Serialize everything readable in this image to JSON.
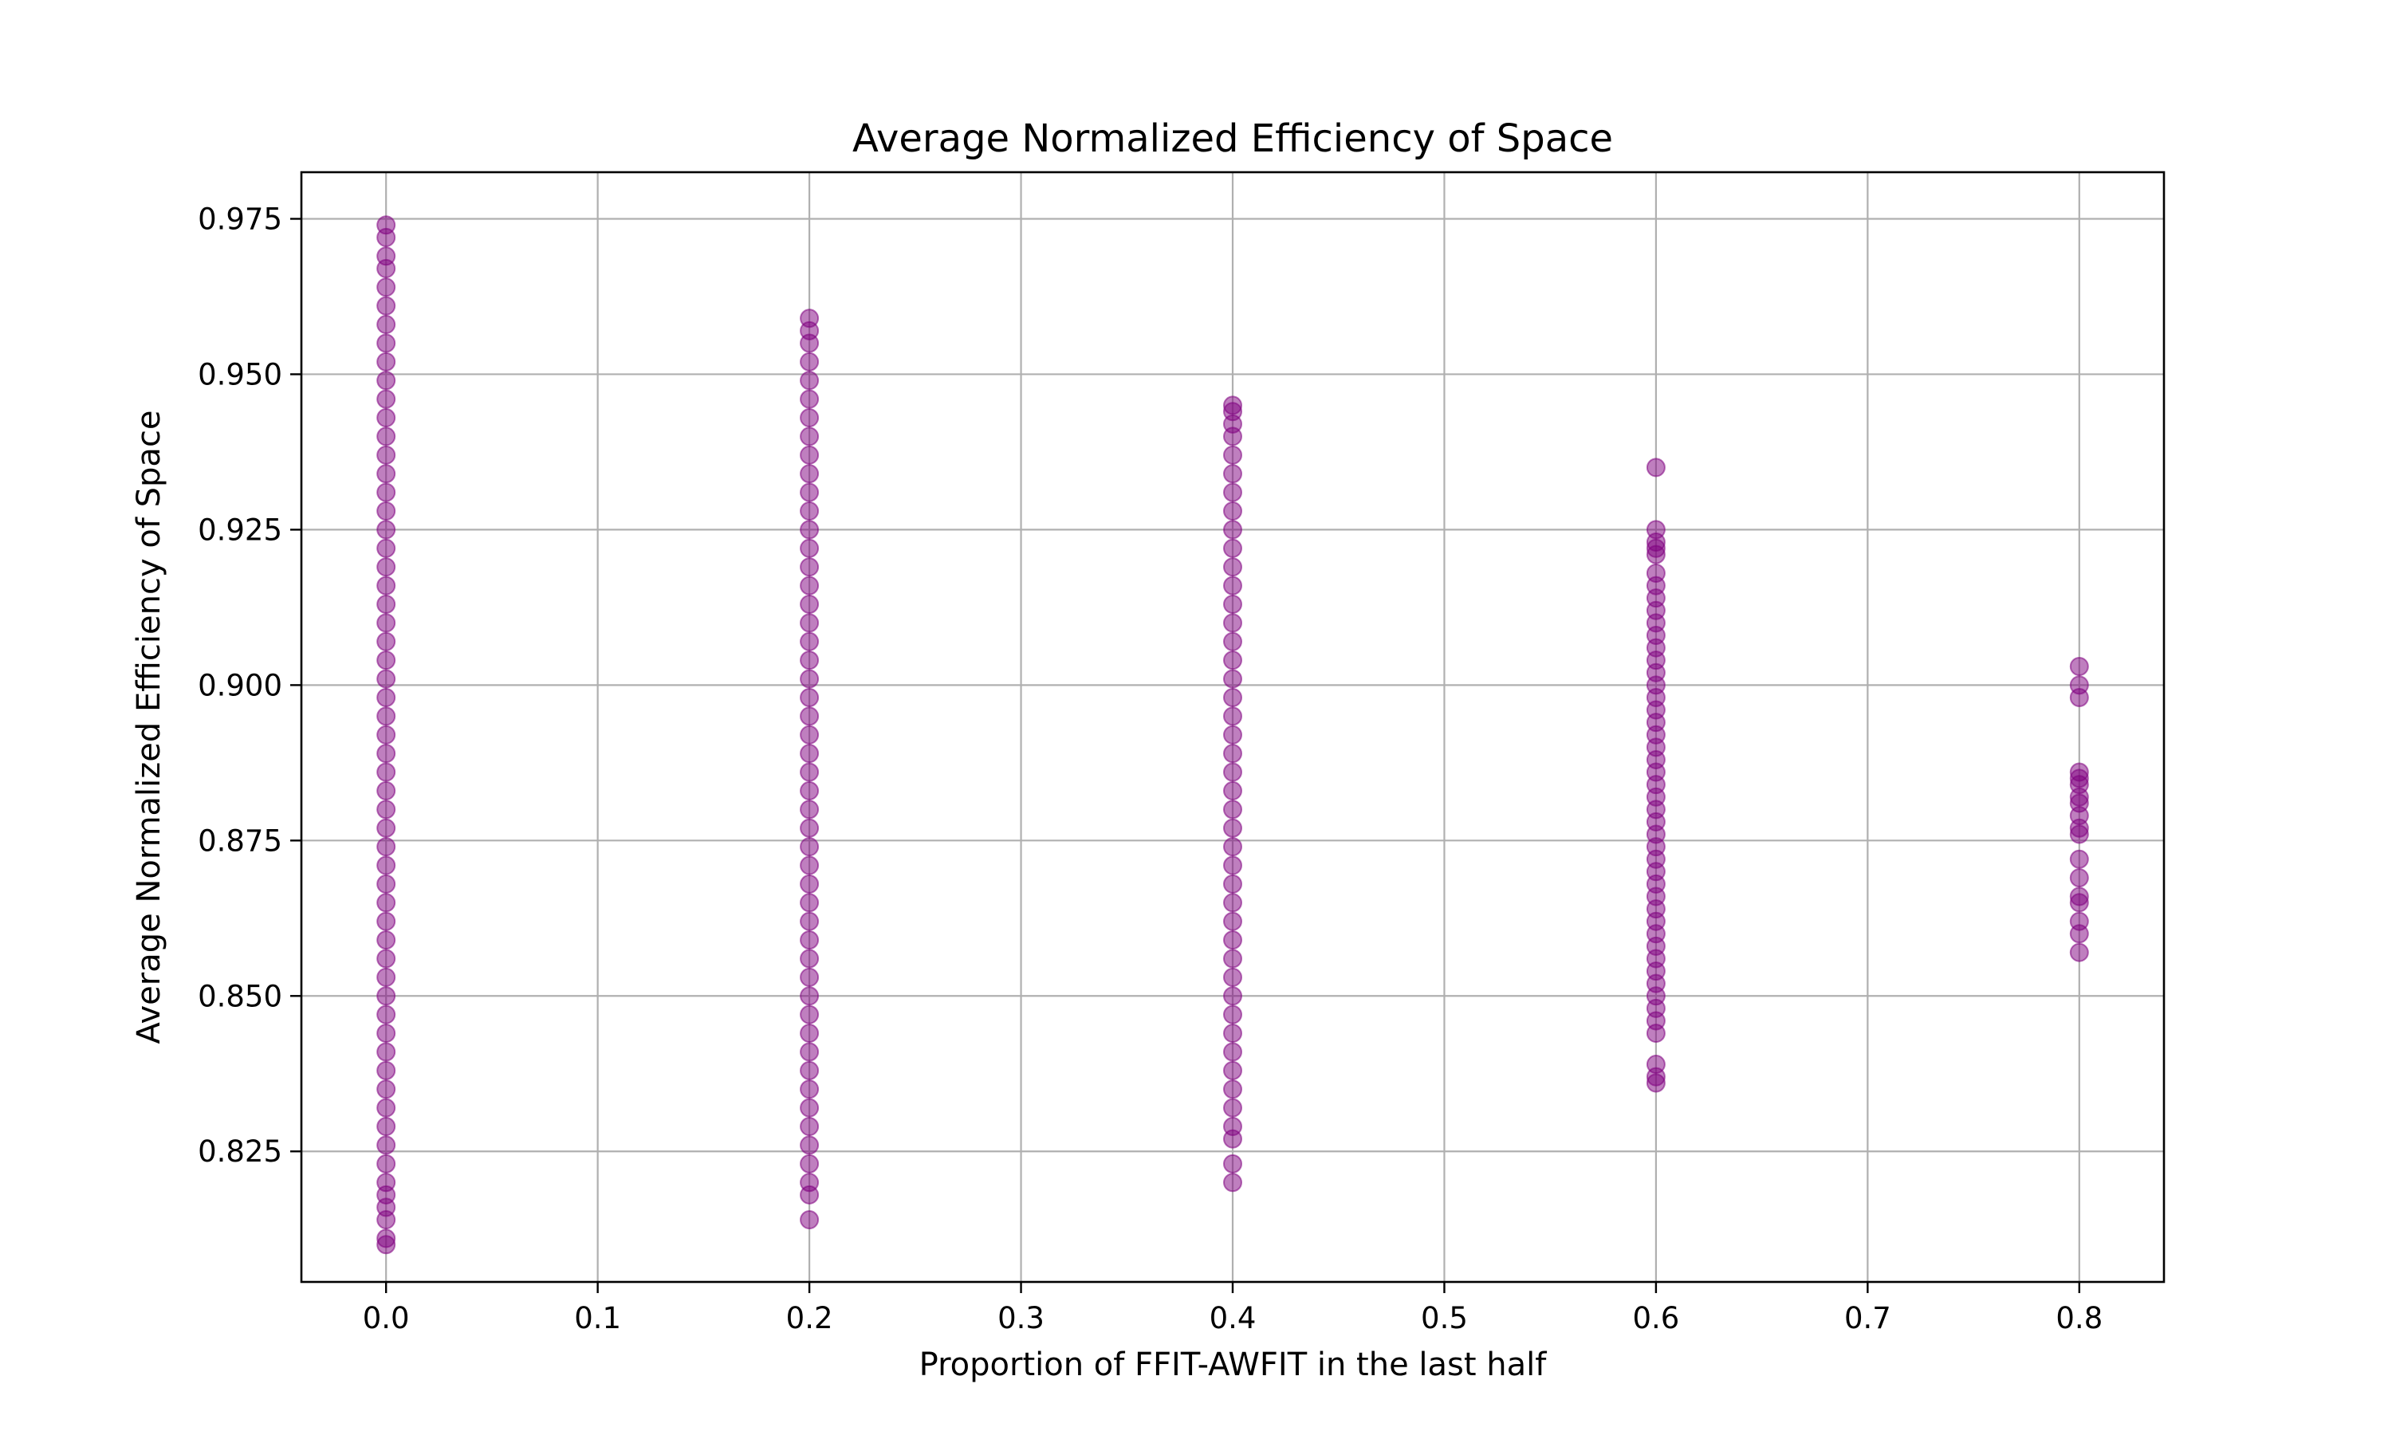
{
  "chart_data": {
    "type": "scatter",
    "title": "Average Normalized Efficiency of Space",
    "xlabel": "Proportion of FFIT-AWFIT in the last half",
    "ylabel": "Average Normalized Efficiency of Space",
    "xlim": [
      -0.04,
      0.84
    ],
    "ylim": [
      0.804,
      0.9825
    ],
    "xticks": [
      0.0,
      0.1,
      0.2,
      0.3,
      0.4,
      0.5,
      0.6,
      0.7,
      0.8
    ],
    "xtick_labels": [
      "0.0",
      "0.1",
      "0.2",
      "0.3",
      "0.4",
      "0.5",
      "0.6",
      "0.7",
      "0.8"
    ],
    "yticks": [
      0.825,
      0.85,
      0.875,
      0.9,
      0.925,
      0.95,
      0.975
    ],
    "ytick_labels": [
      "0.825",
      "0.850",
      "0.875",
      "0.900",
      "0.925",
      "0.950",
      "0.975"
    ],
    "grid": true,
    "marker_color": "#800080",
    "marker_alpha": 0.5,
    "series": [
      {
        "x": 0.0,
        "y": [
          0.81,
          0.811,
          0.814,
          0.816,
          0.818,
          0.82,
          0.823,
          0.826,
          0.829,
          0.832,
          0.835,
          0.838,
          0.841,
          0.844,
          0.847,
          0.85,
          0.853,
          0.856,
          0.859,
          0.862,
          0.865,
          0.868,
          0.871,
          0.874,
          0.877,
          0.88,
          0.883,
          0.886,
          0.889,
          0.892,
          0.895,
          0.898,
          0.901,
          0.904,
          0.907,
          0.91,
          0.913,
          0.916,
          0.919,
          0.922,
          0.925,
          0.928,
          0.931,
          0.934,
          0.937,
          0.94,
          0.943,
          0.946,
          0.949,
          0.952,
          0.955,
          0.958,
          0.961,
          0.964,
          0.967,
          0.969,
          0.972,
          0.974
        ]
      },
      {
        "x": 0.2,
        "y": [
          0.814,
          0.818,
          0.82,
          0.823,
          0.826,
          0.829,
          0.832,
          0.835,
          0.838,
          0.841,
          0.844,
          0.847,
          0.85,
          0.853,
          0.856,
          0.859,
          0.862,
          0.865,
          0.868,
          0.871,
          0.874,
          0.877,
          0.88,
          0.883,
          0.886,
          0.889,
          0.892,
          0.895,
          0.898,
          0.901,
          0.904,
          0.907,
          0.91,
          0.913,
          0.916,
          0.919,
          0.922,
          0.925,
          0.928,
          0.931,
          0.934,
          0.937,
          0.94,
          0.943,
          0.946,
          0.949,
          0.952,
          0.955,
          0.957,
          0.959
        ]
      },
      {
        "x": 0.4,
        "y": [
          0.82,
          0.823,
          0.827,
          0.829,
          0.832,
          0.835,
          0.838,
          0.841,
          0.844,
          0.847,
          0.85,
          0.853,
          0.856,
          0.859,
          0.862,
          0.865,
          0.868,
          0.871,
          0.874,
          0.877,
          0.88,
          0.883,
          0.886,
          0.889,
          0.892,
          0.895,
          0.898,
          0.901,
          0.904,
          0.907,
          0.91,
          0.913,
          0.916,
          0.919,
          0.922,
          0.925,
          0.928,
          0.931,
          0.934,
          0.937,
          0.94,
          0.942,
          0.944,
          0.945
        ]
      },
      {
        "x": 0.6,
        "y": [
          0.836,
          0.837,
          0.839,
          0.844,
          0.846,
          0.848,
          0.85,
          0.852,
          0.854,
          0.856,
          0.858,
          0.86,
          0.862,
          0.864,
          0.866,
          0.868,
          0.87,
          0.872,
          0.874,
          0.876,
          0.878,
          0.88,
          0.882,
          0.884,
          0.886,
          0.888,
          0.89,
          0.892,
          0.894,
          0.896,
          0.898,
          0.9,
          0.902,
          0.904,
          0.906,
          0.908,
          0.91,
          0.912,
          0.914,
          0.916,
          0.918,
          0.921,
          0.922,
          0.923,
          0.925,
          0.935
        ]
      },
      {
        "x": 0.8,
        "y": [
          0.857,
          0.86,
          0.862,
          0.865,
          0.866,
          0.869,
          0.872,
          0.876,
          0.877,
          0.879,
          0.881,
          0.882,
          0.884,
          0.885,
          0.886,
          0.898,
          0.9,
          0.903
        ]
      }
    ]
  }
}
